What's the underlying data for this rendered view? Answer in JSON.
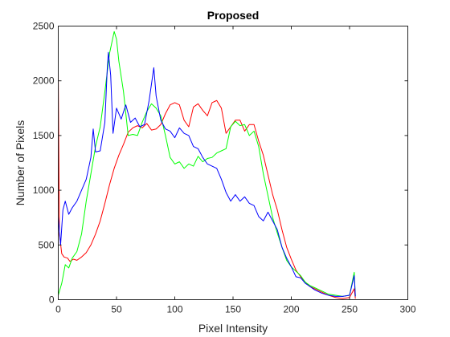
{
  "chart_data": {
    "type": "line",
    "title": "Proposed",
    "xlabel": "Pixel Intensity",
    "ylabel": "Number of Pixels",
    "xlim": [
      0,
      300
    ],
    "ylim": [
      0,
      2500
    ],
    "x_ticks": [
      0,
      50,
      100,
      150,
      200,
      250,
      300
    ],
    "y_ticks": [
      0,
      500,
      1000,
      1500,
      2000,
      2500
    ],
    "grid": false,
    "legend": "none",
    "series": [
      {
        "color": "#ff0000",
        "points": [
          [
            0,
            2080
          ],
          [
            1,
            600
          ],
          [
            3,
            420
          ],
          [
            5,
            390
          ],
          [
            8,
            380
          ],
          [
            10,
            350
          ],
          [
            13,
            370
          ],
          [
            16,
            360
          ],
          [
            20,
            390
          ],
          [
            24,
            430
          ],
          [
            28,
            500
          ],
          [
            32,
            600
          ],
          [
            36,
            720
          ],
          [
            40,
            880
          ],
          [
            44,
            1050
          ],
          [
            48,
            1200
          ],
          [
            52,
            1320
          ],
          [
            56,
            1420
          ],
          [
            60,
            1530
          ],
          [
            64,
            1570
          ],
          [
            68,
            1590
          ],
          [
            72,
            1570
          ],
          [
            76,
            1610
          ],
          [
            80,
            1550
          ],
          [
            84,
            1560
          ],
          [
            88,
            1600
          ],
          [
            92,
            1700
          ],
          [
            96,
            1780
          ],
          [
            100,
            1800
          ],
          [
            104,
            1780
          ],
          [
            108,
            1640
          ],
          [
            112,
            1580
          ],
          [
            116,
            1760
          ],
          [
            120,
            1790
          ],
          [
            124,
            1730
          ],
          [
            128,
            1680
          ],
          [
            132,
            1800
          ],
          [
            136,
            1820
          ],
          [
            140,
            1750
          ],
          [
            144,
            1520
          ],
          [
            148,
            1580
          ],
          [
            152,
            1640
          ],
          [
            156,
            1640
          ],
          [
            160,
            1540
          ],
          [
            164,
            1600
          ],
          [
            168,
            1600
          ],
          [
            172,
            1450
          ],
          [
            176,
            1320
          ],
          [
            180,
            1140
          ],
          [
            184,
            960
          ],
          [
            188,
            820
          ],
          [
            192,
            640
          ],
          [
            196,
            480
          ],
          [
            200,
            370
          ],
          [
            204,
            270
          ],
          [
            208,
            210
          ],
          [
            212,
            160
          ],
          [
            216,
            120
          ],
          [
            220,
            100
          ],
          [
            226,
            70
          ],
          [
            232,
            40
          ],
          [
            238,
            20
          ],
          [
            244,
            10
          ],
          [
            250,
            20
          ],
          [
            254,
            100
          ],
          [
            255,
            10
          ]
        ]
      },
      {
        "color": "#00ff00",
        "points": [
          [
            0,
            40
          ],
          [
            3,
            150
          ],
          [
            6,
            320
          ],
          [
            9,
            290
          ],
          [
            12,
            380
          ],
          [
            16,
            440
          ],
          [
            20,
            600
          ],
          [
            24,
            900
          ],
          [
            28,
            1150
          ],
          [
            32,
            1400
          ],
          [
            36,
            1580
          ],
          [
            40,
            1900
          ],
          [
            44,
            2250
          ],
          [
            48,
            2450
          ],
          [
            50,
            2380
          ],
          [
            52,
            2180
          ],
          [
            56,
            1900
          ],
          [
            60,
            1500
          ],
          [
            64,
            1510
          ],
          [
            68,
            1500
          ],
          [
            72,
            1620
          ],
          [
            76,
            1720
          ],
          [
            80,
            1790
          ],
          [
            84,
            1750
          ],
          [
            88,
            1680
          ],
          [
            92,
            1500
          ],
          [
            96,
            1300
          ],
          [
            100,
            1240
          ],
          [
            104,
            1260
          ],
          [
            108,
            1200
          ],
          [
            112,
            1240
          ],
          [
            116,
            1220
          ],
          [
            120,
            1310
          ],
          [
            124,
            1260
          ],
          [
            128,
            1290
          ],
          [
            132,
            1300
          ],
          [
            136,
            1340
          ],
          [
            140,
            1360
          ],
          [
            144,
            1380
          ],
          [
            148,
            1580
          ],
          [
            152,
            1630
          ],
          [
            156,
            1590
          ],
          [
            160,
            1600
          ],
          [
            164,
            1500
          ],
          [
            168,
            1540
          ],
          [
            172,
            1400
          ],
          [
            176,
            1150
          ],
          [
            180,
            950
          ],
          [
            184,
            750
          ],
          [
            188,
            610
          ],
          [
            192,
            480
          ],
          [
            196,
            360
          ],
          [
            200,
            300
          ],
          [
            204,
            260
          ],
          [
            208,
            220
          ],
          [
            212,
            160
          ],
          [
            216,
            130
          ],
          [
            220,
            110
          ],
          [
            226,
            80
          ],
          [
            232,
            50
          ],
          [
            238,
            40
          ],
          [
            244,
            30
          ],
          [
            250,
            40
          ],
          [
            254,
            250
          ],
          [
            255,
            30
          ]
        ]
      },
      {
        "color": "#0000ff",
        "points": [
          [
            0,
            760
          ],
          [
            2,
            500
          ],
          [
            4,
            820
          ],
          [
            6,
            900
          ],
          [
            9,
            780
          ],
          [
            12,
            840
          ],
          [
            16,
            900
          ],
          [
            20,
            1000
          ],
          [
            24,
            1100
          ],
          [
            28,
            1300
          ],
          [
            30,
            1560
          ],
          [
            32,
            1350
          ],
          [
            36,
            1360
          ],
          [
            40,
            1620
          ],
          [
            42,
            2100
          ],
          [
            43,
            2260
          ],
          [
            45,
            2050
          ],
          [
            47,
            1520
          ],
          [
            50,
            1750
          ],
          [
            54,
            1650
          ],
          [
            58,
            1780
          ],
          [
            62,
            1620
          ],
          [
            66,
            1660
          ],
          [
            70,
            1580
          ],
          [
            74,
            1600
          ],
          [
            78,
            1820
          ],
          [
            82,
            2120
          ],
          [
            84,
            1860
          ],
          [
            88,
            1640
          ],
          [
            92,
            1560
          ],
          [
            96,
            1540
          ],
          [
            100,
            1480
          ],
          [
            104,
            1570
          ],
          [
            108,
            1520
          ],
          [
            112,
            1500
          ],
          [
            116,
            1400
          ],
          [
            120,
            1380
          ],
          [
            124,
            1300
          ],
          [
            128,
            1240
          ],
          [
            132,
            1220
          ],
          [
            136,
            1200
          ],
          [
            140,
            1100
          ],
          [
            144,
            980
          ],
          [
            148,
            900
          ],
          [
            152,
            960
          ],
          [
            156,
            900
          ],
          [
            160,
            940
          ],
          [
            164,
            880
          ],
          [
            168,
            860
          ],
          [
            172,
            760
          ],
          [
            176,
            720
          ],
          [
            180,
            800
          ],
          [
            184,
            720
          ],
          [
            188,
            640
          ],
          [
            192,
            480
          ],
          [
            196,
            380
          ],
          [
            200,
            300
          ],
          [
            204,
            210
          ],
          [
            208,
            200
          ],
          [
            212,
            150
          ],
          [
            216,
            120
          ],
          [
            220,
            90
          ],
          [
            226,
            60
          ],
          [
            232,
            40
          ],
          [
            238,
            30
          ],
          [
            244,
            30
          ],
          [
            250,
            40
          ],
          [
            254,
            220
          ],
          [
            255,
            30
          ]
        ]
      }
    ]
  }
}
